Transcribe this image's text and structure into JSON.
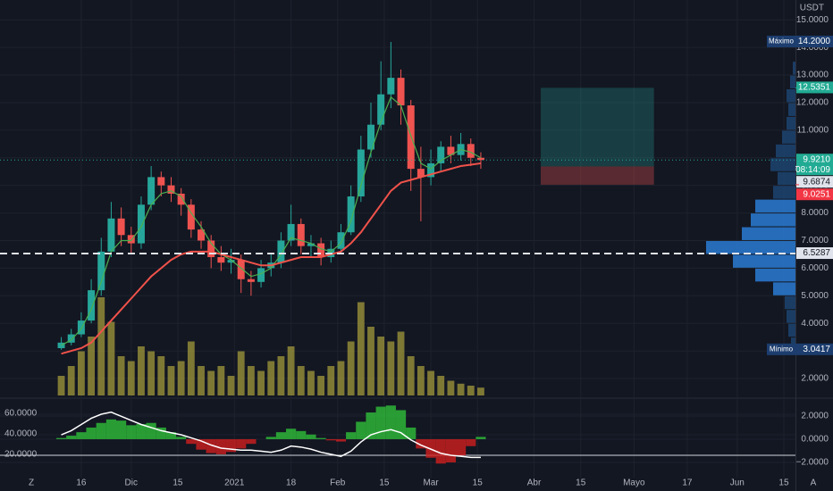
{
  "header": {
    "currency": "USDT"
  },
  "footer": {
    "left": "Z",
    "right": "A"
  },
  "chart_data": {
    "type": "candlestick",
    "x": [
      9,
      12,
      15,
      18,
      21,
      24,
      27,
      30,
      33,
      36,
      39,
      42,
      45,
      48,
      51,
      54,
      57,
      60,
      63,
      66,
      69,
      72,
      75,
      78,
      81,
      84,
      87,
      90,
      93,
      96,
      99,
      102,
      105,
      108,
      111,
      114,
      117,
      120,
      123,
      126,
      129,
      132,
      135
    ],
    "open": [
      3.1,
      3.3,
      3.6,
      4.1,
      5.2,
      6.6,
      7.8,
      7.2,
      6.9,
      8.3,
      9.3,
      9.0,
      8.7,
      8.3,
      7.4,
      7.0,
      6.4,
      6.2,
      6.3,
      5.6,
      5.5,
      6.0,
      6.2,
      7.0,
      7.6,
      6.8,
      6.9,
      6.4,
      6.7,
      7.3,
      8.6,
      10.3,
      11.2,
      12.3,
      12.9,
      11.9,
      9.6,
      9.3,
      9.8,
      10.4,
      10.1,
      10.5,
      10.0
    ],
    "high": [
      3.5,
      3.8,
      4.4,
      5.6,
      7.1,
      8.4,
      8.2,
      7.5,
      8.6,
      9.7,
      9.5,
      9.3,
      8.9,
      8.5,
      7.7,
      7.2,
      6.8,
      6.7,
      6.5,
      5.9,
      6.3,
      6.5,
      7.3,
      8.3,
      7.8,
      7.2,
      7.1,
      7.0,
      7.6,
      9.0,
      10.8,
      12.0,
      13.5,
      14.2,
      13.2,
      12.1,
      10.4,
      10.3,
      10.6,
      10.8,
      10.9,
      10.7,
      10.2
    ],
    "low": [
      3.04,
      3.2,
      3.5,
      4.0,
      5.0,
      6.4,
      6.8,
      6.5,
      6.7,
      8.1,
      8.6,
      8.4,
      7.9,
      7.1,
      6.7,
      6.0,
      5.9,
      5.8,
      5.1,
      5.0,
      5.3,
      5.7,
      6.0,
      6.8,
      6.5,
      6.4,
      6.1,
      6.2,
      6.5,
      7.2,
      8.4,
      10.0,
      11.0,
      11.8,
      11.2,
      8.8,
      7.7,
      9.0,
      9.5,
      9.8,
      9.9,
      9.7,
      9.6
    ],
    "close": [
      3.3,
      3.6,
      4.1,
      5.2,
      6.6,
      7.8,
      7.2,
      6.9,
      8.3,
      9.3,
      9.0,
      8.7,
      8.3,
      7.4,
      7.0,
      6.4,
      6.2,
      6.3,
      5.6,
      5.5,
      6.0,
      6.2,
      7.0,
      7.6,
      6.8,
      6.9,
      6.4,
      6.7,
      7.3,
      8.6,
      10.3,
      11.2,
      12.3,
      12.9,
      11.9,
      9.6,
      9.3,
      9.8,
      10.4,
      10.1,
      10.5,
      10.0,
      9.92
    ],
    "up_color": "#26a69a",
    "down_color": "#ef5350",
    "xlim": [
      -9.4,
      229.5
    ],
    "xticks": [
      {
        "value": 15,
        "label": "16"
      },
      {
        "value": 30,
        "label": "Dic"
      },
      {
        "value": 44,
        "label": "15"
      },
      {
        "value": 61,
        "label": "2021"
      },
      {
        "value": 78,
        "label": "18"
      },
      {
        "value": 92,
        "label": "Feb"
      },
      {
        "value": 106,
        "label": "15"
      },
      {
        "value": 120,
        "label": "Mar"
      },
      {
        "value": 134,
        "label": "15"
      },
      {
        "value": 151,
        "label": "Abr"
      },
      {
        "value": 165,
        "label": "15"
      },
      {
        "value": 181,
        "label": "Mayo"
      },
      {
        "value": 197,
        "label": "17"
      },
      {
        "value": 212,
        "label": "Jun"
      },
      {
        "value": 226,
        "label": "15"
      }
    ],
    "ylim": [
      1.32,
      15.72
    ],
    "yticks": [
      {
        "value": 2,
        "label": "2.0000"
      },
      {
        "value": 3,
        "label": "3.0000"
      },
      {
        "value": 4,
        "label": "4.0000"
      },
      {
        "value": 5,
        "label": "5.0000"
      },
      {
        "value": 6,
        "label": "6.0000"
      },
      {
        "value": 7,
        "label": "7.0000"
      },
      {
        "value": 8,
        "label": "8.0000"
      },
      {
        "value": 9,
        "label": "9.0000"
      },
      {
        "value": 10,
        "label": "10.0000"
      },
      {
        "value": 11,
        "label": "11.0000"
      },
      {
        "value": 12,
        "label": "12.0000"
      },
      {
        "value": 13,
        "label": "13.0000"
      },
      {
        "value": 14,
        "label": "14.0000"
      },
      {
        "value": 15,
        "label": "15.0000"
      }
    ],
    "grid": true,
    "moving_averages": [
      {
        "color": "#4caf50",
        "values": [
          3.2,
          3.4,
          3.8,
          4.5,
          5.5,
          6.6,
          7.0,
          7.0,
          7.5,
          8.3,
          8.7,
          8.8,
          8.6,
          8.0,
          7.5,
          6.9,
          6.5,
          6.3,
          6.0,
          5.7,
          5.8,
          6.0,
          6.5,
          7.1,
          7.0,
          6.9,
          6.7,
          6.6,
          6.9,
          7.7,
          9.0,
          10.2,
          11.3,
          12.2,
          11.9,
          10.8,
          9.8,
          9.6,
          9.9,
          10.1,
          10.3,
          10.2,
          10.0
        ]
      },
      {
        "color": "#f0524a",
        "values": [
          2.9,
          3.0,
          3.1,
          3.3,
          3.7,
          4.1,
          4.5,
          4.9,
          5.3,
          5.7,
          6.0,
          6.3,
          6.5,
          6.6,
          6.6,
          6.6,
          6.5,
          6.4,
          6.3,
          6.2,
          6.1,
          6.1,
          6.2,
          6.3,
          6.4,
          6.4,
          6.4,
          6.5,
          6.6,
          6.9,
          7.3,
          7.8,
          8.3,
          8.8,
          9.1,
          9.2,
          9.3,
          9.4,
          9.5,
          9.6,
          9.7,
          9.75,
          9.8
        ]
      }
    ],
    "volume": {
      "color": "#a39a3c",
      "values": [
        20,
        30,
        45,
        60,
        100,
        75,
        40,
        35,
        50,
        45,
        40,
        30,
        35,
        55,
        30,
        25,
        30,
        20,
        45,
        30,
        25,
        35,
        40,
        50,
        30,
        25,
        20,
        30,
        35,
        55,
        95,
        70,
        60,
        55,
        65,
        40,
        30,
        25,
        20,
        15,
        12,
        10,
        8
      ]
    },
    "volume_profile": {
      "bins": [
        3,
        3.5,
        4,
        4.5,
        5,
        5.5,
        6,
        6.5,
        7,
        7.5,
        8,
        8.5,
        9,
        9.5,
        10,
        10.5,
        11,
        11.5,
        12,
        12.5,
        13,
        13.5
      ],
      "values": [
        5,
        8,
        10,
        12,
        25,
        45,
        70,
        100,
        60,
        50,
        45,
        25,
        20,
        28,
        22,
        15,
        10,
        8,
        10,
        6,
        3
      ],
      "colors": [
        "#1d4470",
        "#1d4470",
        "#1d4470",
        "#1d4470",
        "#2a7bd4",
        "#2a7bd4",
        "#2a7bd4",
        "#2a7bd4",
        "#2a7bd4",
        "#2a7bd4",
        "#2a7bd4",
        "#1d4470",
        "#1d4470",
        "#1d4470",
        "#1d4470",
        "#1d4470",
        "#1d4470",
        "#1d4470",
        "#1d4470",
        "#1d4470",
        "#1d4470"
      ]
    },
    "long_position": {
      "x": [
        153,
        187
      ],
      "target": 12.5351,
      "entry": 9.6874,
      "stop": 9.0251
    },
    "price_labels": [
      {
        "name": "Máximo",
        "value": 14.2,
        "label": "14.2000",
        "color": "#1c3d6e",
        "text_color": "#ffffff"
      },
      {
        "value": 12.5351,
        "label": "12.5351",
        "color": "#22ab94",
        "text_color": "#ffffff"
      },
      {
        "value": 9.921,
        "label": "9.9210",
        "time": "08:14:09",
        "color": "#22ab94",
        "text_color": "#ffffff",
        "line": "dotted"
      },
      {
        "value": 9.6874,
        "label": "9.6874",
        "color": "#e0e3eb",
        "text_color": "#131722"
      },
      {
        "value": 9.0251,
        "label": "9.0251",
        "color": "#f23645",
        "text_color": "#ffffff"
      },
      {
        "value": 6.5287,
        "label": "6.5287",
        "color": "#e0e3eb",
        "text_color": "#131722",
        "line": "dashed"
      },
      {
        "name": "Mínimo",
        "value": 3.0417,
        "label": "3.0417",
        "color": "#1c3d6e",
        "text_color": "#ffffff"
      }
    ],
    "oscillator": {
      "ylim": [
        -3.31,
        3.38
      ],
      "yticks": [
        {
          "value": 2,
          "label": "2.0000"
        },
        {
          "value": 0,
          "label": "0.0000"
        },
        {
          "value": -2,
          "label": "−2.0000"
        }
      ],
      "y2lim": [
        -1.7,
        73.9
      ],
      "y2ticks": [
        {
          "value": 60,
          "label": "60.0000"
        },
        {
          "value": 40,
          "label": "40.0000"
        },
        {
          "value": 20,
          "label": "20.0000"
        }
      ],
      "area": {
        "up_color": "#2fbf3a",
        "down_color": "#d11f1f",
        "values": [
          0.1,
          0.3,
          0.6,
          1.0,
          1.4,
          1.7,
          1.6,
          1.2,
          1.3,
          1.4,
          1.0,
          0.6,
          0.2,
          -0.4,
          -0.9,
          -1.2,
          -1.3,
          -1.1,
          -0.8,
          -0.4,
          0.0,
          0.2,
          0.6,
          0.9,
          0.7,
          0.4,
          0.1,
          -0.1,
          -0.2,
          0.6,
          1.5,
          2.3,
          2.8,
          2.9,
          2.5,
          1.0,
          -0.8,
          -1.6,
          -2.1,
          -2.0,
          -1.4,
          -0.6,
          0.2
        ]
      },
      "line": {
        "color": "#ffffff",
        "axis": "y2",
        "values": [
          40,
          44,
          50,
          56,
          60,
          62,
          58,
          54,
          50,
          47,
          44,
          42,
          40,
          37,
          34,
          30,
          27,
          26,
          25,
          25,
          24,
          23,
          25,
          29,
          28,
          26,
          23,
          21,
          19,
          24,
          33,
          40,
          43,
          45,
          42,
          35,
          30,
          26,
          22,
          20,
          19,
          18,
          18
        ]
      }
    }
  }
}
